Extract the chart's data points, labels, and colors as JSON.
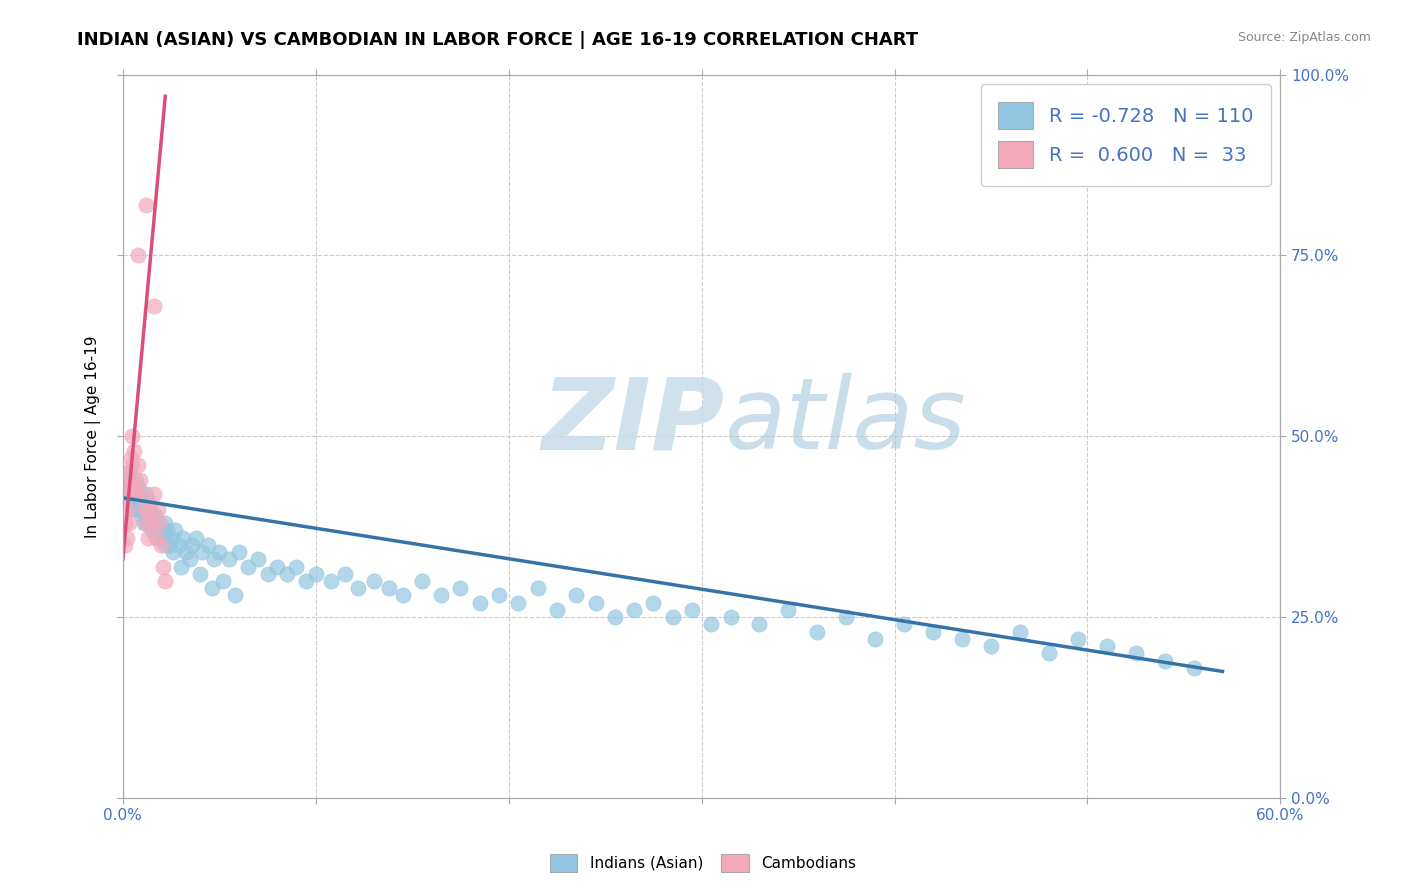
{
  "title": "INDIAN (ASIAN) VS CAMBODIAN IN LABOR FORCE | AGE 16-19 CORRELATION CHART",
  "source": "Source: ZipAtlas.com",
  "ylabel": "In Labor Force | Age 16-19",
  "xlim": [
    0.0,
    0.6
  ],
  "ylim": [
    0.0,
    1.0
  ],
  "xticks": [
    0.0,
    0.1,
    0.2,
    0.3,
    0.4,
    0.5,
    0.6
  ],
  "yticks": [
    0.0,
    0.25,
    0.5,
    0.75,
    1.0
  ],
  "xticklabels": [
    "0.0%",
    "",
    "",
    "",
    "",
    "",
    "60.0%"
  ],
  "yticklabels_right": [
    "0.0%",
    "25.0%",
    "50.0%",
    "75.0%",
    "100.0%"
  ],
  "blue_color": "#93c6e0",
  "pink_color": "#f4a9bb",
  "blue_line_color": "#3674a8",
  "pink_line_color": "#d94f78",
  "legend_R_blue": "-0.728",
  "legend_N_blue": "110",
  "legend_R_pink": "0.600",
  "legend_N_pink": "33",
  "watermark_zip": "ZIP",
  "watermark_atlas": "atlas",
  "title_fontsize": 13,
  "axis_label_fontsize": 11,
  "tick_fontsize": 11,
  "blue_x": [
    0.002,
    0.003,
    0.004,
    0.004,
    0.005,
    0.005,
    0.006,
    0.006,
    0.007,
    0.007,
    0.008,
    0.008,
    0.009,
    0.009,
    0.01,
    0.01,
    0.011,
    0.011,
    0.012,
    0.012,
    0.013,
    0.013,
    0.014,
    0.015,
    0.015,
    0.016,
    0.017,
    0.018,
    0.019,
    0.02,
    0.021,
    0.022,
    0.023,
    0.024,
    0.025,
    0.027,
    0.029,
    0.031,
    0.033,
    0.036,
    0.038,
    0.041,
    0.044,
    0.047,
    0.05,
    0.055,
    0.06,
    0.065,
    0.07,
    0.075,
    0.08,
    0.085,
    0.09,
    0.095,
    0.1,
    0.108,
    0.115,
    0.122,
    0.13,
    0.138,
    0.145,
    0.155,
    0.165,
    0.175,
    0.185,
    0.195,
    0.205,
    0.215,
    0.225,
    0.235,
    0.245,
    0.255,
    0.265,
    0.275,
    0.285,
    0.295,
    0.305,
    0.315,
    0.33,
    0.345,
    0.36,
    0.375,
    0.39,
    0.405,
    0.42,
    0.435,
    0.45,
    0.465,
    0.48,
    0.495,
    0.51,
    0.525,
    0.54,
    0.555,
    0.003,
    0.005,
    0.007,
    0.009,
    0.011,
    0.013,
    0.015,
    0.018,
    0.022,
    0.026,
    0.03,
    0.035,
    0.04,
    0.046,
    0.052,
    0.058
  ],
  "blue_y": [
    0.42,
    0.44,
    0.41,
    0.43,
    0.4,
    0.42,
    0.43,
    0.41,
    0.44,
    0.4,
    0.43,
    0.41,
    0.4,
    0.42,
    0.39,
    0.41,
    0.4,
    0.38,
    0.42,
    0.39,
    0.41,
    0.38,
    0.4,
    0.39,
    0.37,
    0.38,
    0.39,
    0.37,
    0.38,
    0.37,
    0.36,
    0.38,
    0.37,
    0.35,
    0.36,
    0.37,
    0.35,
    0.36,
    0.34,
    0.35,
    0.36,
    0.34,
    0.35,
    0.33,
    0.34,
    0.33,
    0.34,
    0.32,
    0.33,
    0.31,
    0.32,
    0.31,
    0.32,
    0.3,
    0.31,
    0.3,
    0.31,
    0.29,
    0.3,
    0.29,
    0.28,
    0.3,
    0.28,
    0.29,
    0.27,
    0.28,
    0.27,
    0.29,
    0.26,
    0.28,
    0.27,
    0.25,
    0.26,
    0.27,
    0.25,
    0.26,
    0.24,
    0.25,
    0.24,
    0.26,
    0.23,
    0.25,
    0.22,
    0.24,
    0.23,
    0.22,
    0.21,
    0.23,
    0.2,
    0.22,
    0.21,
    0.2,
    0.19,
    0.18,
    0.45,
    0.44,
    0.42,
    0.41,
    0.4,
    0.38,
    0.37,
    0.36,
    0.35,
    0.34,
    0.32,
    0.33,
    0.31,
    0.29,
    0.3,
    0.28
  ],
  "pink_x": [
    0.001,
    0.001,
    0.002,
    0.002,
    0.002,
    0.003,
    0.003,
    0.003,
    0.004,
    0.004,
    0.005,
    0.005,
    0.006,
    0.006,
    0.007,
    0.008,
    0.009,
    0.01,
    0.011,
    0.012,
    0.013,
    0.014,
    0.015,
    0.016,
    0.017,
    0.018,
    0.019,
    0.02,
    0.021,
    0.022,
    0.008,
    0.012,
    0.016
  ],
  "pink_y": [
    0.35,
    0.38,
    0.4,
    0.43,
    0.36,
    0.42,
    0.45,
    0.38,
    0.44,
    0.47,
    0.46,
    0.5,
    0.48,
    0.43,
    0.42,
    0.46,
    0.44,
    0.42,
    0.4,
    0.38,
    0.36,
    0.4,
    0.38,
    0.42,
    0.36,
    0.4,
    0.38,
    0.35,
    0.32,
    0.3,
    0.75,
    0.82,
    0.68
  ],
  "blue_trend_x": [
    0.0,
    0.57
  ],
  "blue_trend_y": [
    0.415,
    0.175
  ],
  "pink_trend_x": [
    0.0,
    0.022
  ],
  "pink_trend_y": [
    0.33,
    0.97
  ]
}
